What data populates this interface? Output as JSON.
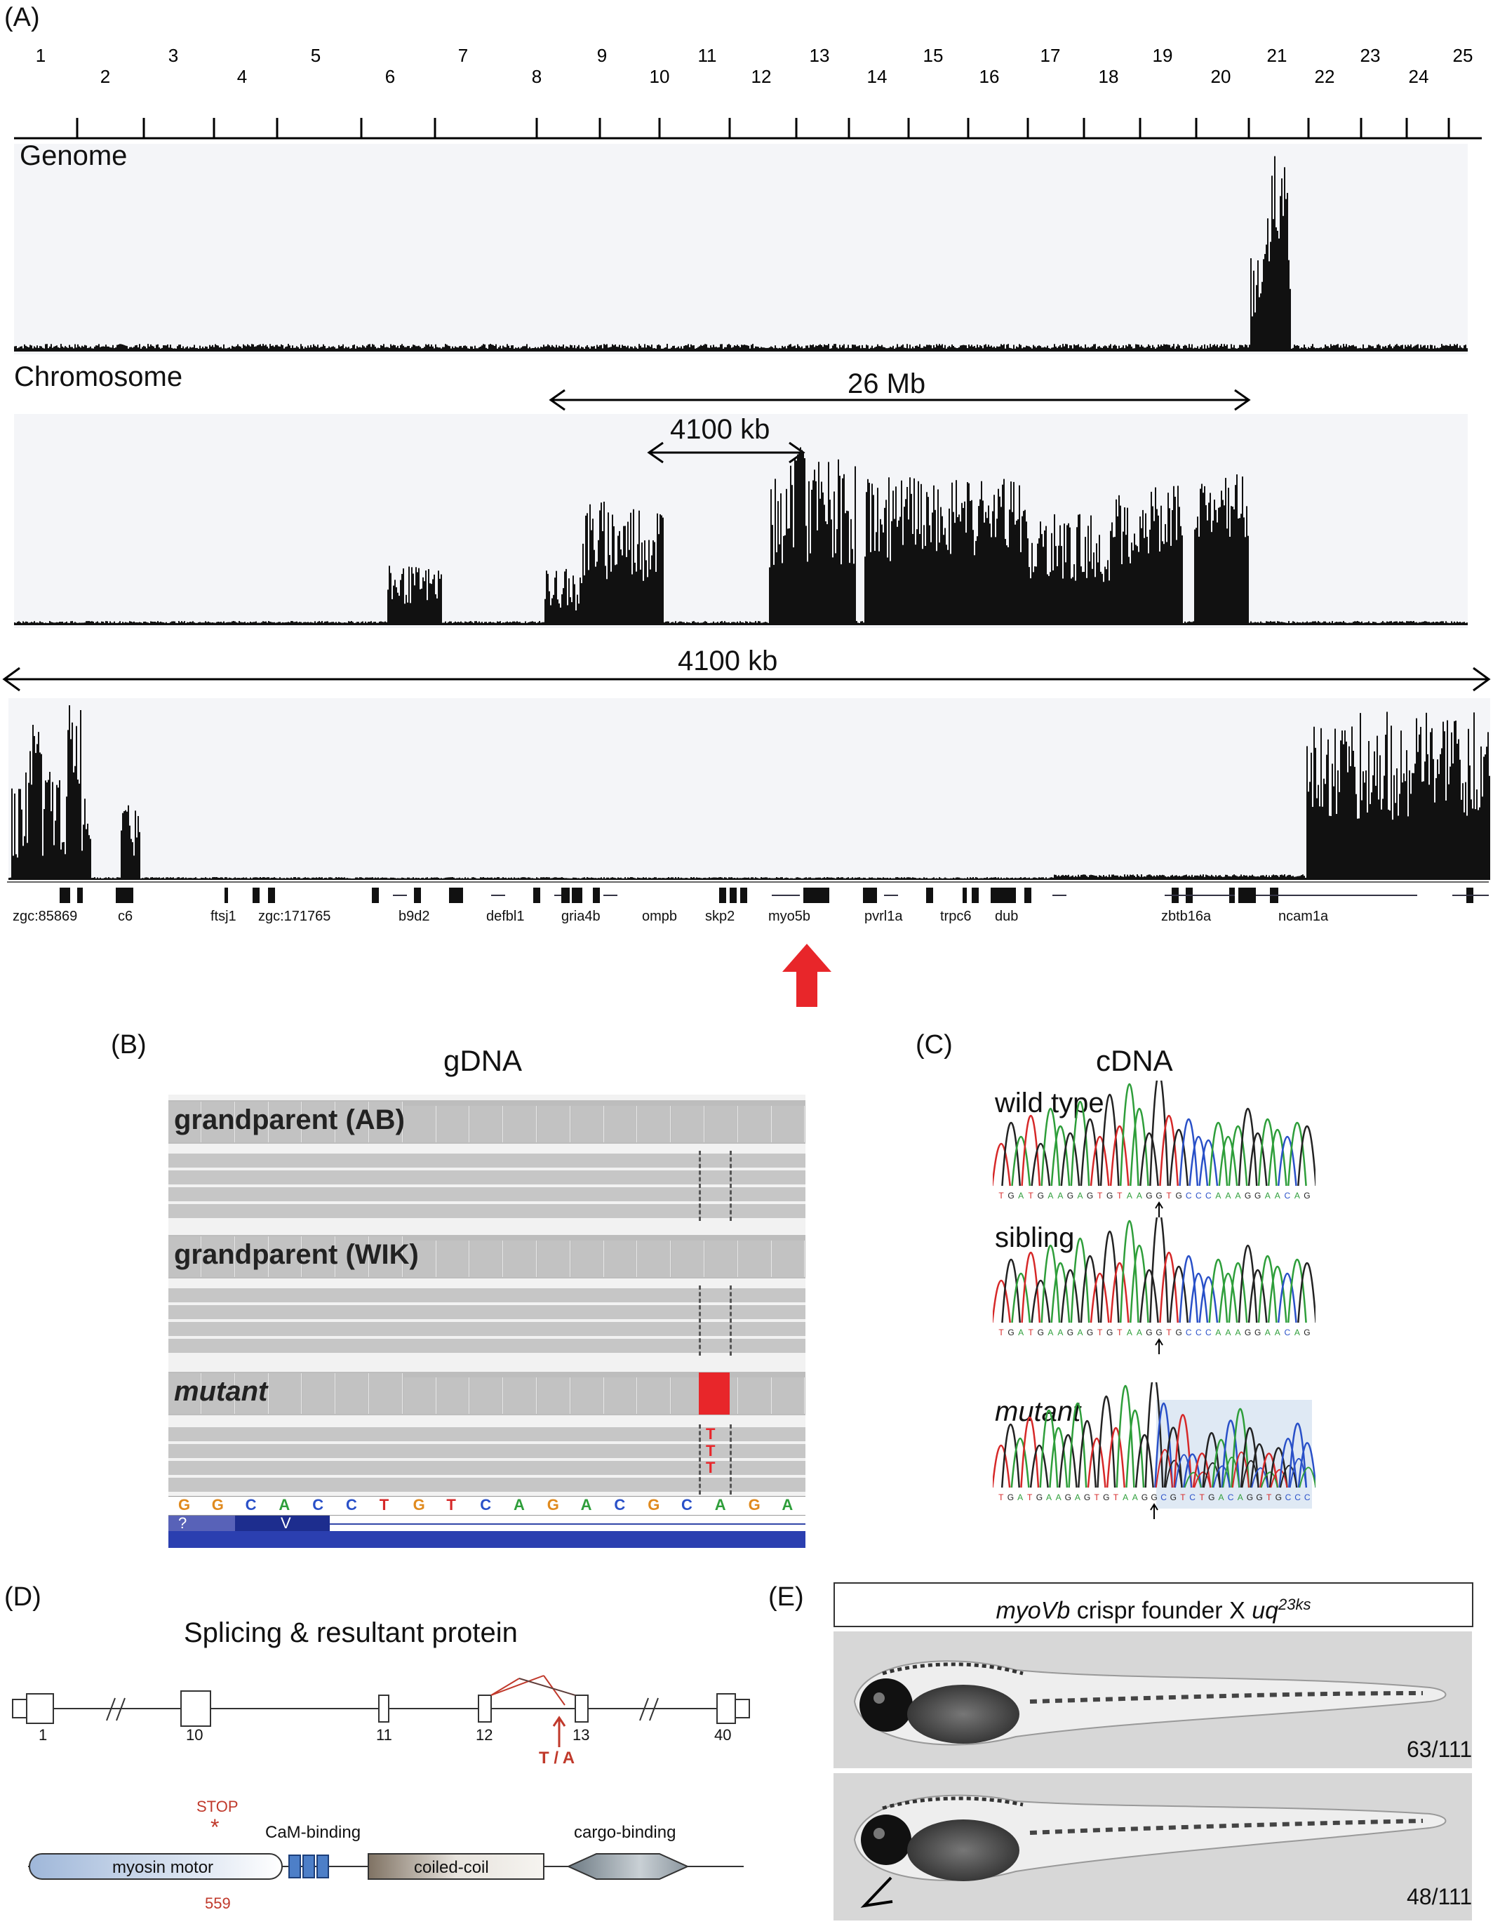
{
  "panels": {
    "A": "(A)",
    "B": "(B)",
    "C": "(C)",
    "D": "(D)",
    "E": "(E)"
  },
  "panel_a": {
    "chromosome_ticks": [
      "1",
      "2",
      "3",
      "4",
      "5",
      "6",
      "7",
      "8",
      "9",
      "10",
      "11",
      "12",
      "13",
      "14",
      "15",
      "16",
      "17",
      "18",
      "19",
      "20",
      "21",
      "22",
      "23",
      "24",
      "25"
    ],
    "genome_label": "Genome",
    "chromosome_label": "Chromosome",
    "span_26mb": "26 Mb",
    "span_4100kb_upper": "4100 kb",
    "span_4100kb_lower": "4100 kb",
    "genes": [
      "zgc:85869",
      "c6",
      "ftsj1",
      "zgc:171765",
      "b9d2",
      "defbl1",
      "gria4b",
      "ompb",
      "skp2",
      "myo5b",
      "pvrl1a",
      "trpc6",
      "dub",
      "zbtb16a",
      "ncam1a"
    ],
    "arrow_color": "#e8262a"
  },
  "panel_b": {
    "title": "gDNA",
    "row1": "grandparent (AB)",
    "row2": "grandparent (WIK)",
    "row3": "mutant",
    "variant_bases": [
      "T",
      "T",
      "T"
    ],
    "sequence": [
      "G",
      "G",
      "C",
      "A",
      "C",
      "C",
      "T",
      "G",
      "T",
      "C",
      "A",
      "G",
      "A",
      "C",
      "G",
      "C",
      "A",
      "G",
      "A"
    ],
    "track_labels": [
      "?",
      "V"
    ],
    "mutant_color": "#e8262a"
  },
  "panel_c": {
    "title": "cDNA",
    "wild_type": "wild type",
    "sibling": "sibling",
    "mutant": "mutant",
    "seq_wt": "TGATGAAGAGTGTAAGGTGCCCAAAGGAACAG",
    "seq_sib": "TGATGAAGAGTGTAAGGTGCCCAAAGGAACAG",
    "seq_mut": "TGATGAAGAGTGTAAGGCGTCTGACAGGTGCCC"
  },
  "panel_d": {
    "title": "Splicing & resultant protein",
    "exons": [
      "1",
      "10",
      "11",
      "12",
      "13",
      "40"
    ],
    "variant": "T / A",
    "stop": "STOP",
    "stop_mark": "*",
    "stop_position": "559",
    "domains": {
      "motor": "myosin motor",
      "cam": "CaM-binding",
      "coiled": "coiled-coil",
      "cargo": "cargo-binding"
    }
  },
  "panel_e": {
    "header_prefix": "myoVb",
    "header_mid": " crispr founder X ",
    "header_allele": "uq",
    "header_sup": "23ks",
    "count_top": "63/111",
    "count_bottom": "48/111"
  }
}
